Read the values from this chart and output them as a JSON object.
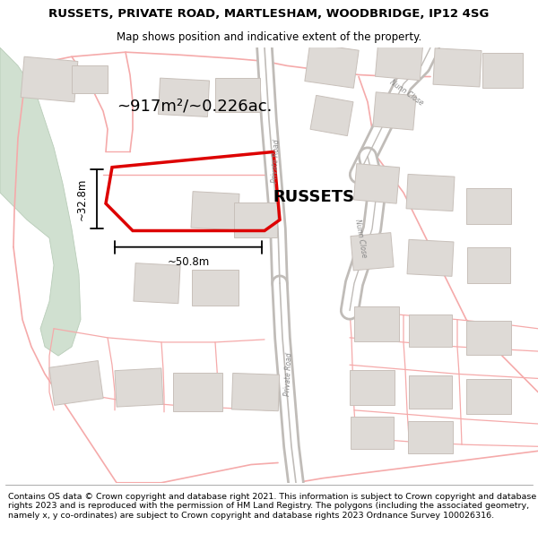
{
  "title": "RUSSETS, PRIVATE ROAD, MARTLESHAM, WOODBRIDGE, IP12 4SG",
  "subtitle": "Map shows position and indicative extent of the property.",
  "footer": "Contains OS data © Crown copyright and database right 2021. This information is subject to Crown copyright and database rights 2023 and is reproduced with the permission of HM Land Registry. The polygons (including the associated geometry, namely x, y co-ordinates) are subject to Crown copyright and database rights 2023 Ordnance Survey 100026316.",
  "property_label": "RUSSETS",
  "area_label": "~917m²/~0.226ac.",
  "width_label": "~50.8m",
  "height_label": "~32.8m",
  "red_color": "#dd0000",
  "pink_color": "#f5aaaa",
  "gray_road_color": "#c0bcb8",
  "building_fill": "#dedad6",
  "building_edge": "#c8c0ba",
  "green_fill": "#d0e0d0",
  "green_edge": "#b8ccb8",
  "white": "#ffffff",
  "black": "#000000",
  "title_fontsize": 9.5,
  "subtitle_fontsize": 8.5,
  "footer_fontsize": 6.8
}
